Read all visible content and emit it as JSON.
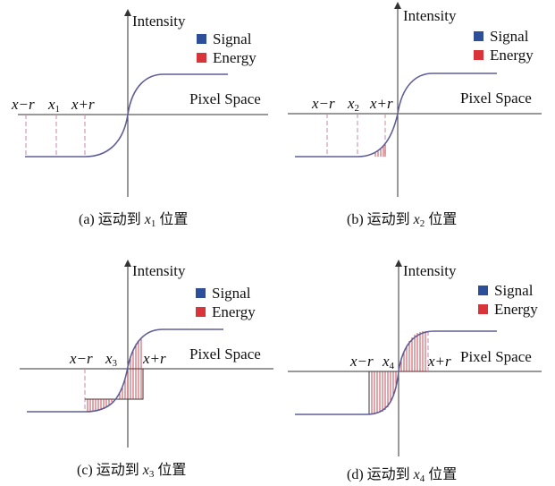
{
  "legend": {
    "signal": "Signal",
    "energy": "Energy",
    "signal_color": "#2d4f9a",
    "energy_color": "#d9343a"
  },
  "axis": {
    "y_label": "Intensity",
    "x_label": "Pixel Space"
  },
  "curve_color": "#5e5e99",
  "panels": [
    {
      "id": "a",
      "caption_prefix": "(a) 运动到 ",
      "caption_var": "x",
      "caption_sub": "1",
      "caption_suffix": " 位置",
      "mark_left": "x−r",
      "mark_center_var": "x",
      "mark_center_sub": "1",
      "mark_right": "x+r"
    },
    {
      "id": "b",
      "caption_prefix": "(b) 运动到 ",
      "caption_var": "x",
      "caption_sub": "2",
      "caption_suffix": " 位置",
      "mark_left": "x−r",
      "mark_center_var": "x",
      "mark_center_sub": "2",
      "mark_right": "x+r"
    },
    {
      "id": "c",
      "caption_prefix": "(c) 运动到 ",
      "caption_var": "x",
      "caption_sub": "3",
      "caption_suffix": " 位置",
      "mark_left": "x−r",
      "mark_center_var": "x",
      "mark_center_sub": "3",
      "mark_right": "x+r"
    },
    {
      "id": "d",
      "caption_prefix": "(d) 运动到 ",
      "caption_var": "x",
      "caption_sub": "4",
      "caption_suffix": " 位置",
      "mark_left": "x−r",
      "mark_center_var": "x",
      "mark_center_sub": "4",
      "mark_right": "x+r"
    }
  ]
}
